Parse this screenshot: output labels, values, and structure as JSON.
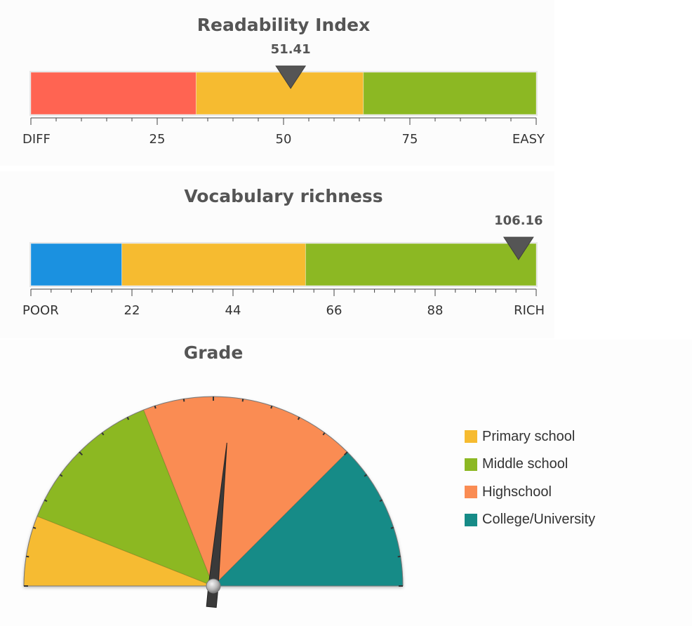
{
  "chart_data": [
    {
      "type": "linear-gauge",
      "title": "Readability Index",
      "value": 51.41,
      "value_label": "51.41",
      "range": [
        0,
        100
      ],
      "ticks": [
        {
          "value": 0,
          "label": "DIFF"
        },
        {
          "value": 25,
          "label": "25"
        },
        {
          "value": 50,
          "label": "50"
        },
        {
          "value": 75,
          "label": "75"
        },
        {
          "value": 100,
          "label": "EASY"
        }
      ],
      "bands": [
        {
          "from": 0,
          "to": 32.7,
          "color": "#ff6452"
        },
        {
          "from": 32.7,
          "to": 65.8,
          "color": "#f6bb30"
        },
        {
          "from": 65.8,
          "to": 100,
          "color": "#8cb823"
        }
      ]
    },
    {
      "type": "linear-gauge",
      "title": "Vocabulary richness",
      "value": 106.16,
      "value_label": "106.16",
      "range": [
        0,
        110
      ],
      "ticks": [
        {
          "value": 0,
          "label": "POOR"
        },
        {
          "value": 22,
          "label": "22"
        },
        {
          "value": 44,
          "label": "44"
        },
        {
          "value": 66,
          "label": "66"
        },
        {
          "value": 88,
          "label": "88"
        },
        {
          "value": 110,
          "label": "RICH"
        }
      ],
      "bands": [
        {
          "from": 0,
          "to": 19.8,
          "color": "#1b91e0"
        },
        {
          "from": 19.8,
          "to": 59.8,
          "color": "#f6bb30"
        },
        {
          "from": 59.8,
          "to": 110,
          "color": "#8cb823"
        }
      ]
    },
    {
      "type": "angular-gauge",
      "title": "Grade",
      "range": [
        0,
        100
      ],
      "value": 53,
      "bands": [
        {
          "from": 0,
          "to": 12,
          "color": "#f6bb30",
          "name": "Primary school"
        },
        {
          "from": 12,
          "to": 38,
          "color": "#8cb823",
          "name": "Middle school"
        },
        {
          "from": 38,
          "to": 75,
          "color": "#fa8c53",
          "name": "Highschool"
        },
        {
          "from": 75,
          "to": 100,
          "color": "#168b87",
          "name": "College/University"
        }
      ],
      "legend": {
        "position": "right",
        "items": [
          {
            "label": "Primary school",
            "color": "#f6bb30"
          },
          {
            "label": "Middle school",
            "color": "#8cb823"
          },
          {
            "label": "Highschool",
            "color": "#fa8c53"
          },
          {
            "label": "College/University",
            "color": "#168b87"
          }
        ]
      }
    }
  ]
}
